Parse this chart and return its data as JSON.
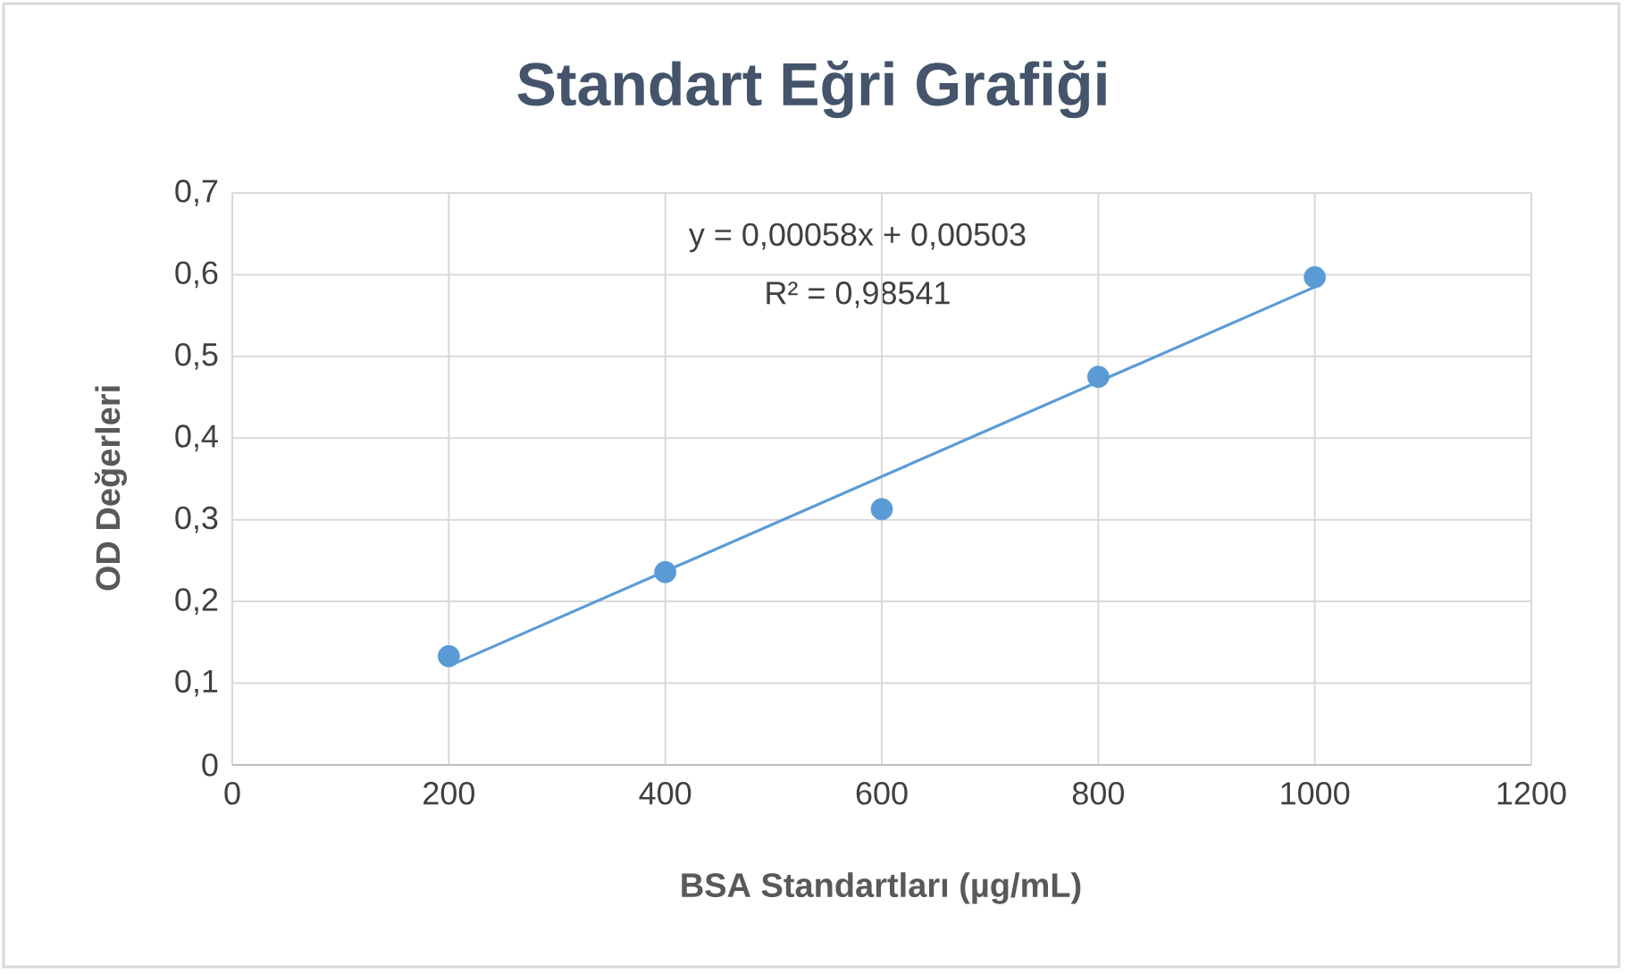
{
  "chart_data": {
    "type": "scatter",
    "title": "Standart Eğri Grafiği",
    "xlabel": "BSA Standartları (µg/mL)",
    "ylabel": "OD Değerleri",
    "annotations": [
      "y = 0,00058x + 0,00503",
      "R² = 0,98541"
    ],
    "xlim": [
      0,
      1200
    ],
    "xticks": [
      0,
      200,
      400,
      600,
      800,
      1000,
      1200
    ],
    "ylim": [
      0,
      0.7
    ],
    "yticks": [
      0,
      {
        "value": 0.1,
        "label": "0,1"
      },
      {
        "value": 0.2,
        "label": "0,2"
      },
      {
        "value": 0.3,
        "label": "0,3"
      },
      {
        "value": 0.4,
        "label": "0,4"
      },
      {
        "value": 0.5,
        "label": "0,5"
      },
      {
        "value": 0.6,
        "label": "0,6"
      },
      {
        "value": 0.7,
        "label": "0,7"
      }
    ],
    "grid": true,
    "marker": "circle",
    "series": [
      {
        "x": [
          200,
          400,
          600,
          800,
          1000
        ],
        "values": [
          0.133,
          0.236,
          0.313,
          0.475,
          0.597
        ],
        "color": "#5b9bd5"
      },
      {
        "type": "line",
        "marker": "none",
        "x": [
          200,
          1000
        ],
        "values": [
          0.121,
          0.585
        ],
        "color": "#5b9bd5"
      }
    ]
  }
}
